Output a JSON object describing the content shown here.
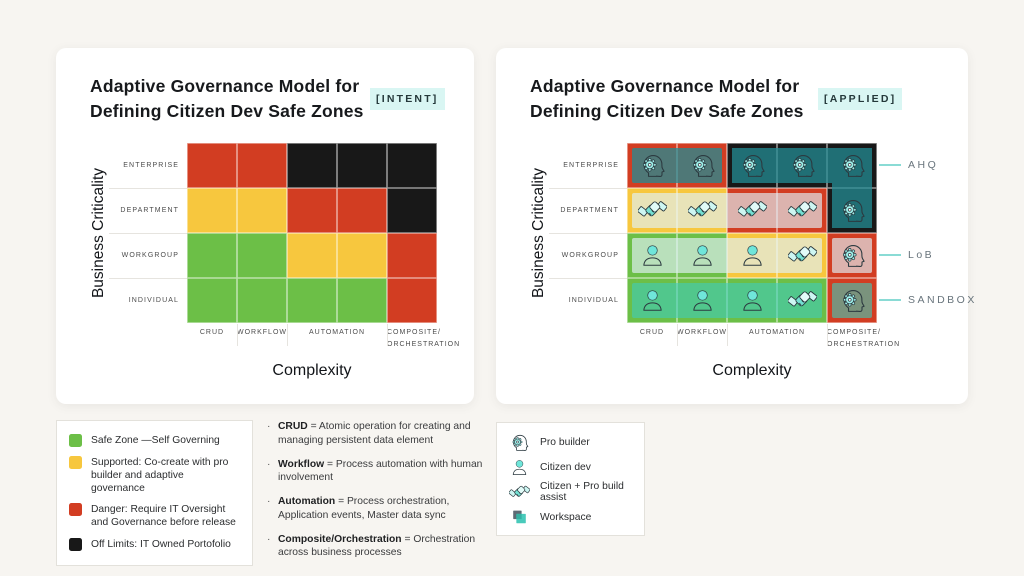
{
  "axes": {
    "y_label": "Business Criticality",
    "x_label": "Complexity"
  },
  "panels": {
    "intent": {
      "title1": "Adaptive Governance Model for",
      "title2": "Defining Citizen Dev Safe Zones",
      "badge": "[INTENT]"
    },
    "applied": {
      "title1": "Adaptive Governance Model for",
      "title2": "Defining Citizen Dev Safe Zones",
      "badge": "[APPLIED]"
    }
  },
  "grid": {
    "row_labels": [
      "ENTERPRISE",
      "DEPARTMENT",
      "WORKGROUP",
      "INDIVIDUAL"
    ],
    "col_labels": [
      {
        "lines": [
          "CRUD"
        ],
        "span": [
          0,
          0
        ]
      },
      {
        "lines": [
          "WORKFLOW"
        ],
        "span": [
          1,
          1
        ]
      },
      {
        "lines": [
          "AUTOMATION"
        ],
        "span": [
          2,
          3
        ]
      },
      {
        "lines": [
          "COMPOSITE/",
          "ORCHESTRATION"
        ],
        "span": [
          4,
          4
        ]
      }
    ],
    "cell_colors": {
      "G": "#6cbf47",
      "Y": "#f7c73e",
      "R": "#d23d22",
      "K": "#181818"
    },
    "base": [
      [
        "R",
        "R",
        "K",
        "K",
        "K"
      ],
      [
        "Y",
        "Y",
        "R",
        "R",
        "K"
      ],
      [
        "G",
        "G",
        "Y",
        "Y",
        "R"
      ],
      [
        "G",
        "G",
        "G",
        "G",
        "R"
      ]
    ]
  },
  "overlays": {
    "colors": {
      "teal": "rgba(35,140,148,0.75)",
      "frost": "rgba(224,242,248,0.66)",
      "mint": "rgba(64,205,186,0.60)"
    },
    "zones": [
      {
        "row": 0,
        "c0": 0,
        "c1": 1,
        "fill": "teal"
      },
      {
        "type": "L",
        "row": 0,
        "c0": 2,
        "c1": 4,
        "fill": "teal"
      },
      {
        "row": 1,
        "c0": 0,
        "c1": 3,
        "fill": "frost"
      },
      {
        "row": 2,
        "c0": 0,
        "c1": 3,
        "fill": "frost"
      },
      {
        "row": 2,
        "c0": 4,
        "c1": 4,
        "fill": "frost"
      },
      {
        "row": 3,
        "c0": 0,
        "c1": 3,
        "fill": "mint"
      },
      {
        "row": 3,
        "c0": 4,
        "c1": 4,
        "fill": "mint"
      }
    ],
    "icons": [
      [
        "pro",
        "pro",
        "pro",
        "pro",
        "pro"
      ],
      [
        "assist",
        "assist",
        "assist",
        "assist",
        "pro"
      ],
      [
        "citizen",
        "citizen",
        "citizen",
        "assist",
        "pro"
      ],
      [
        "citizen",
        "citizen",
        "citizen",
        "assist",
        "pro"
      ]
    ],
    "labels": [
      {
        "row": 0,
        "text": "AHQ"
      },
      {
        "row": 2,
        "text": "LoB"
      },
      {
        "row": 3,
        "text": "SANDBOX"
      }
    ]
  },
  "legend_zones": {
    "items": [
      {
        "color": "#6cbf47",
        "text": "Safe Zone —Self Governing"
      },
      {
        "color": "#f7c73e",
        "text": "Supported: Co-create with pro builder and adaptive governance"
      },
      {
        "color": "#d23d22",
        "text": "Danger: Require IT Oversight and Governance before release"
      },
      {
        "color": "#181818",
        "text": "Off Limits: IT Owned Portofolio"
      }
    ]
  },
  "definitions": {
    "bullet": "·",
    "separator": "=",
    "items": [
      {
        "term": "CRUD",
        "text": "Atomic operation for creating and managing persistent data element"
      },
      {
        "term": "Workflow",
        "text": "Process automation with human involvement"
      },
      {
        "term": "Automation",
        "text": "Process orchestration, Application events, Master data sync"
      },
      {
        "term": "Composite/Orchestration",
        "text": "Orchestration across business processes"
      }
    ]
  },
  "legend_icons": {
    "items": [
      {
        "icon": "pro",
        "text": "Pro builder"
      },
      {
        "icon": "citizen",
        "text": "Citizen dev"
      },
      {
        "icon": "assist",
        "text": "Citizen + Pro build assist"
      },
      {
        "icon": "workspace",
        "text": "Workspace"
      }
    ]
  }
}
